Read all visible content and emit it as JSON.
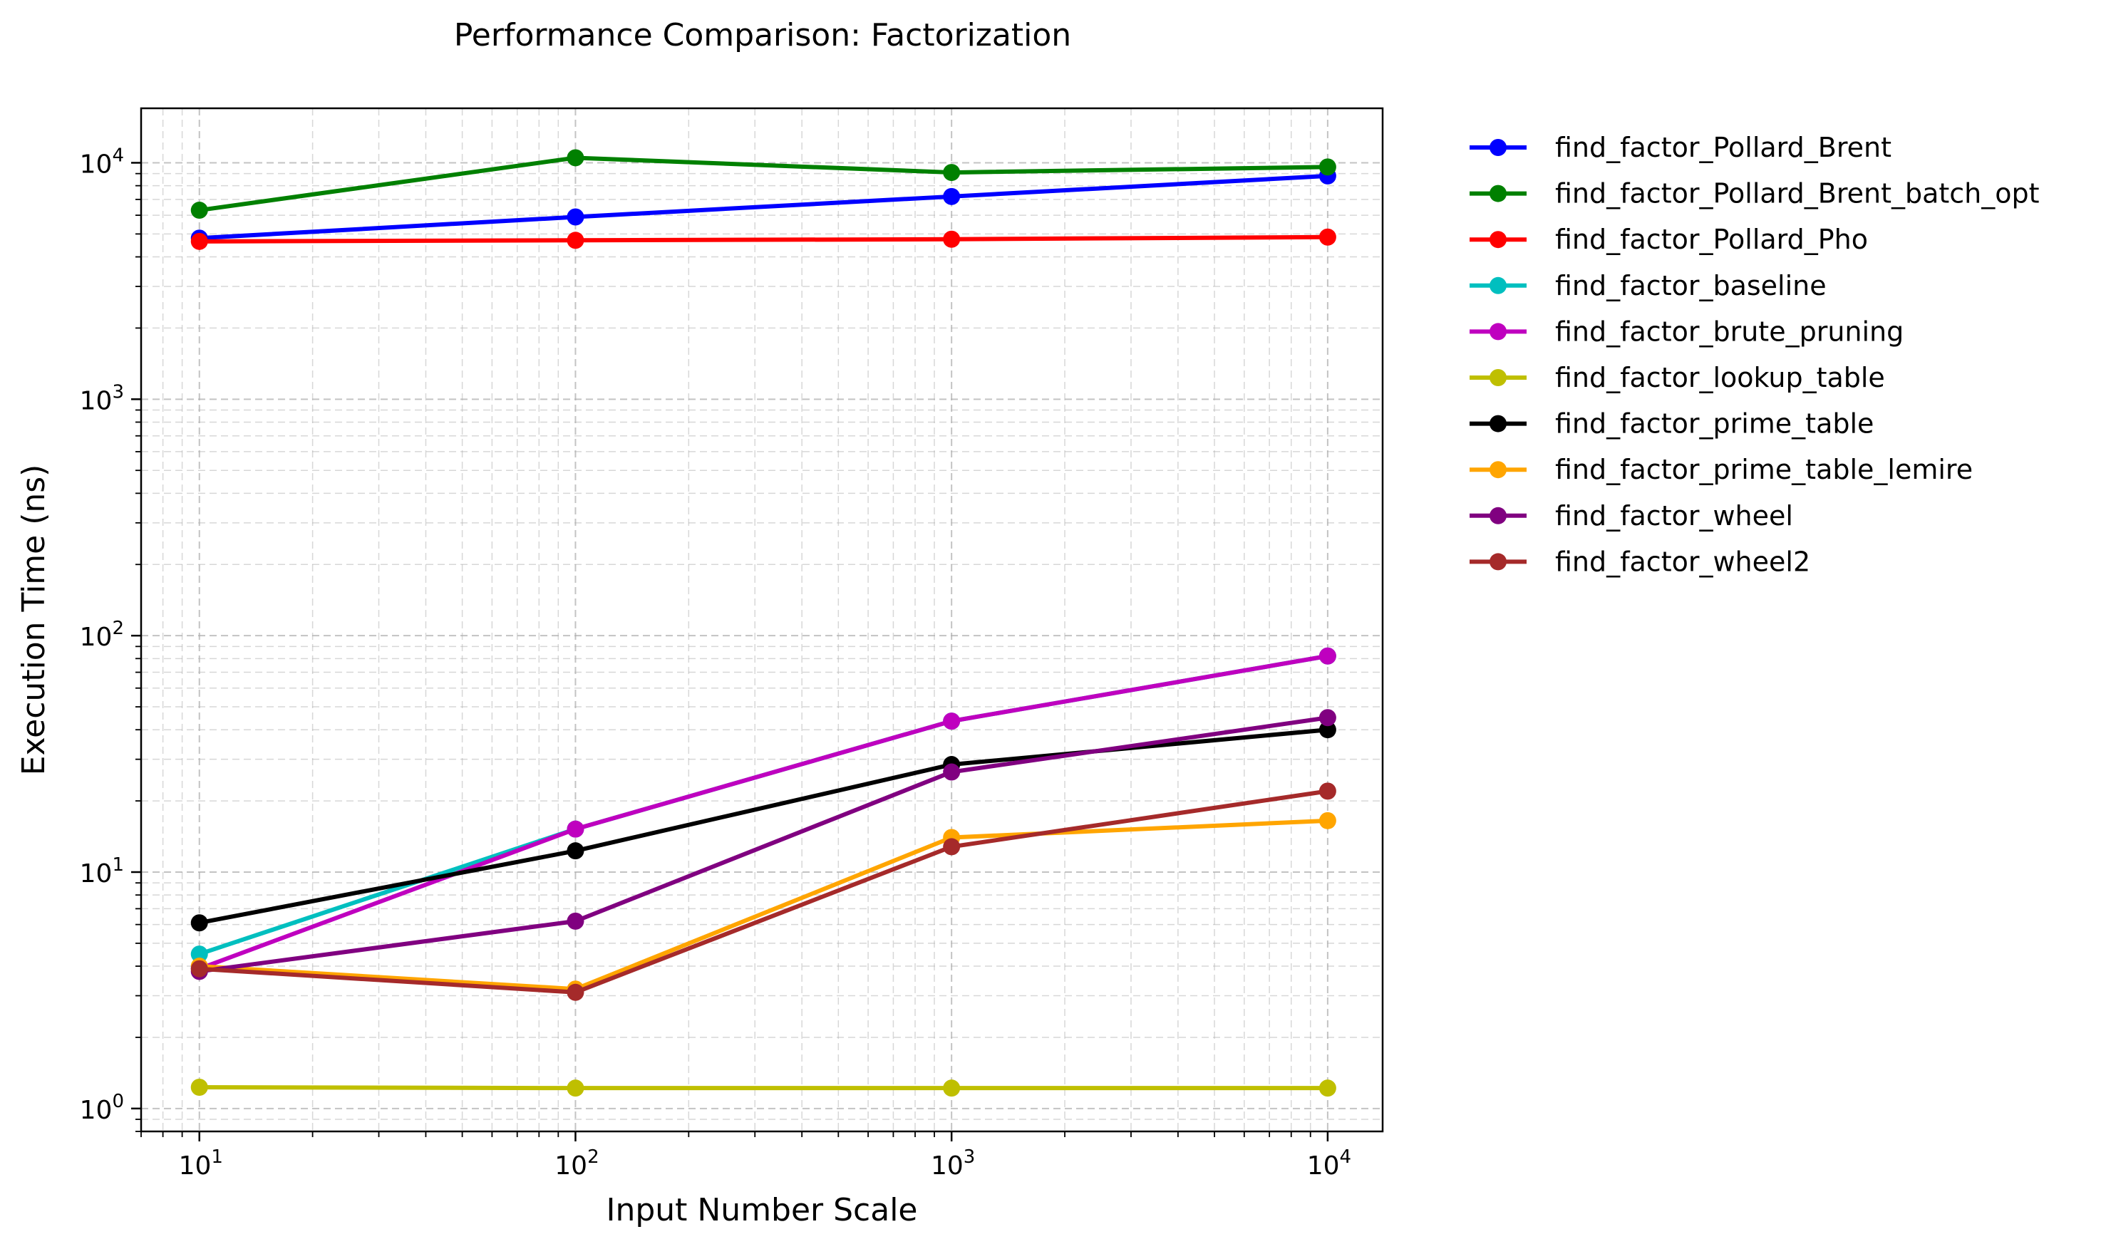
{
  "chart_data": {
    "type": "line",
    "title": "Performance Comparison: Factorization",
    "xlabel": "Input Number Scale",
    "ylabel": "Execution Time (ns)",
    "x_scale": "log",
    "y_scale": "log",
    "xlim": [
      7,
      14000
    ],
    "ylim": [
      0.8,
      17000
    ],
    "grid": true,
    "legend": "outside-upper-right",
    "x": [
      10,
      100,
      1000,
      10000
    ],
    "x_ticks": [
      {
        "value": 10,
        "base": "10",
        "exp": "1"
      },
      {
        "value": 100,
        "base": "10",
        "exp": "2"
      },
      {
        "value": 1000,
        "base": "10",
        "exp": "3"
      },
      {
        "value": 10000,
        "base": "10",
        "exp": "4"
      }
    ],
    "y_ticks": [
      {
        "value": 1,
        "base": "10",
        "exp": "0"
      },
      {
        "value": 10,
        "base": "10",
        "exp": "1"
      },
      {
        "value": 100,
        "base": "10",
        "exp": "2"
      },
      {
        "value": 1000,
        "base": "10",
        "exp": "3"
      },
      {
        "value": 10000,
        "base": "10",
        "exp": "4"
      }
    ],
    "series": [
      {
        "name": "find_factor_Pollard_Brent",
        "color": "#0000ff",
        "values": [
          4800,
          5900,
          7200,
          8800
        ]
      },
      {
        "name": "find_factor_Pollard_Brent_batch_opt",
        "color": "#008000",
        "values": [
          6300,
          10500,
          9100,
          9600
        ]
      },
      {
        "name": "find_factor_Pollard_Pho",
        "color": "#ff0000",
        "values": [
          4650,
          4700,
          4750,
          4850
        ]
      },
      {
        "name": "find_factor_baseline",
        "color": "#00bfbf",
        "values": [
          4.5,
          15.2,
          43.5,
          82
        ]
      },
      {
        "name": "find_factor_brute_pruning",
        "color": "#bf00bf",
        "values": [
          3.9,
          15.2,
          43.5,
          82
        ]
      },
      {
        "name": "find_factor_lookup_table",
        "color": "#bfbf00",
        "values": [
          1.23,
          1.22,
          1.22,
          1.22
        ]
      },
      {
        "name": "find_factor_prime_table",
        "color": "#000000",
        "values": [
          6.1,
          12.3,
          28.5,
          40
        ]
      },
      {
        "name": "find_factor_prime_table_lemire",
        "color": "#ffa500",
        "values": [
          4.0,
          3.2,
          14.0,
          16.5
        ]
      },
      {
        "name": "find_factor_wheel",
        "color": "#800080",
        "values": [
          3.8,
          6.2,
          26.5,
          45
        ]
      },
      {
        "name": "find_factor_wheel2",
        "color": "#a52a2a",
        "values": [
          3.9,
          3.1,
          12.8,
          22
        ]
      }
    ]
  }
}
